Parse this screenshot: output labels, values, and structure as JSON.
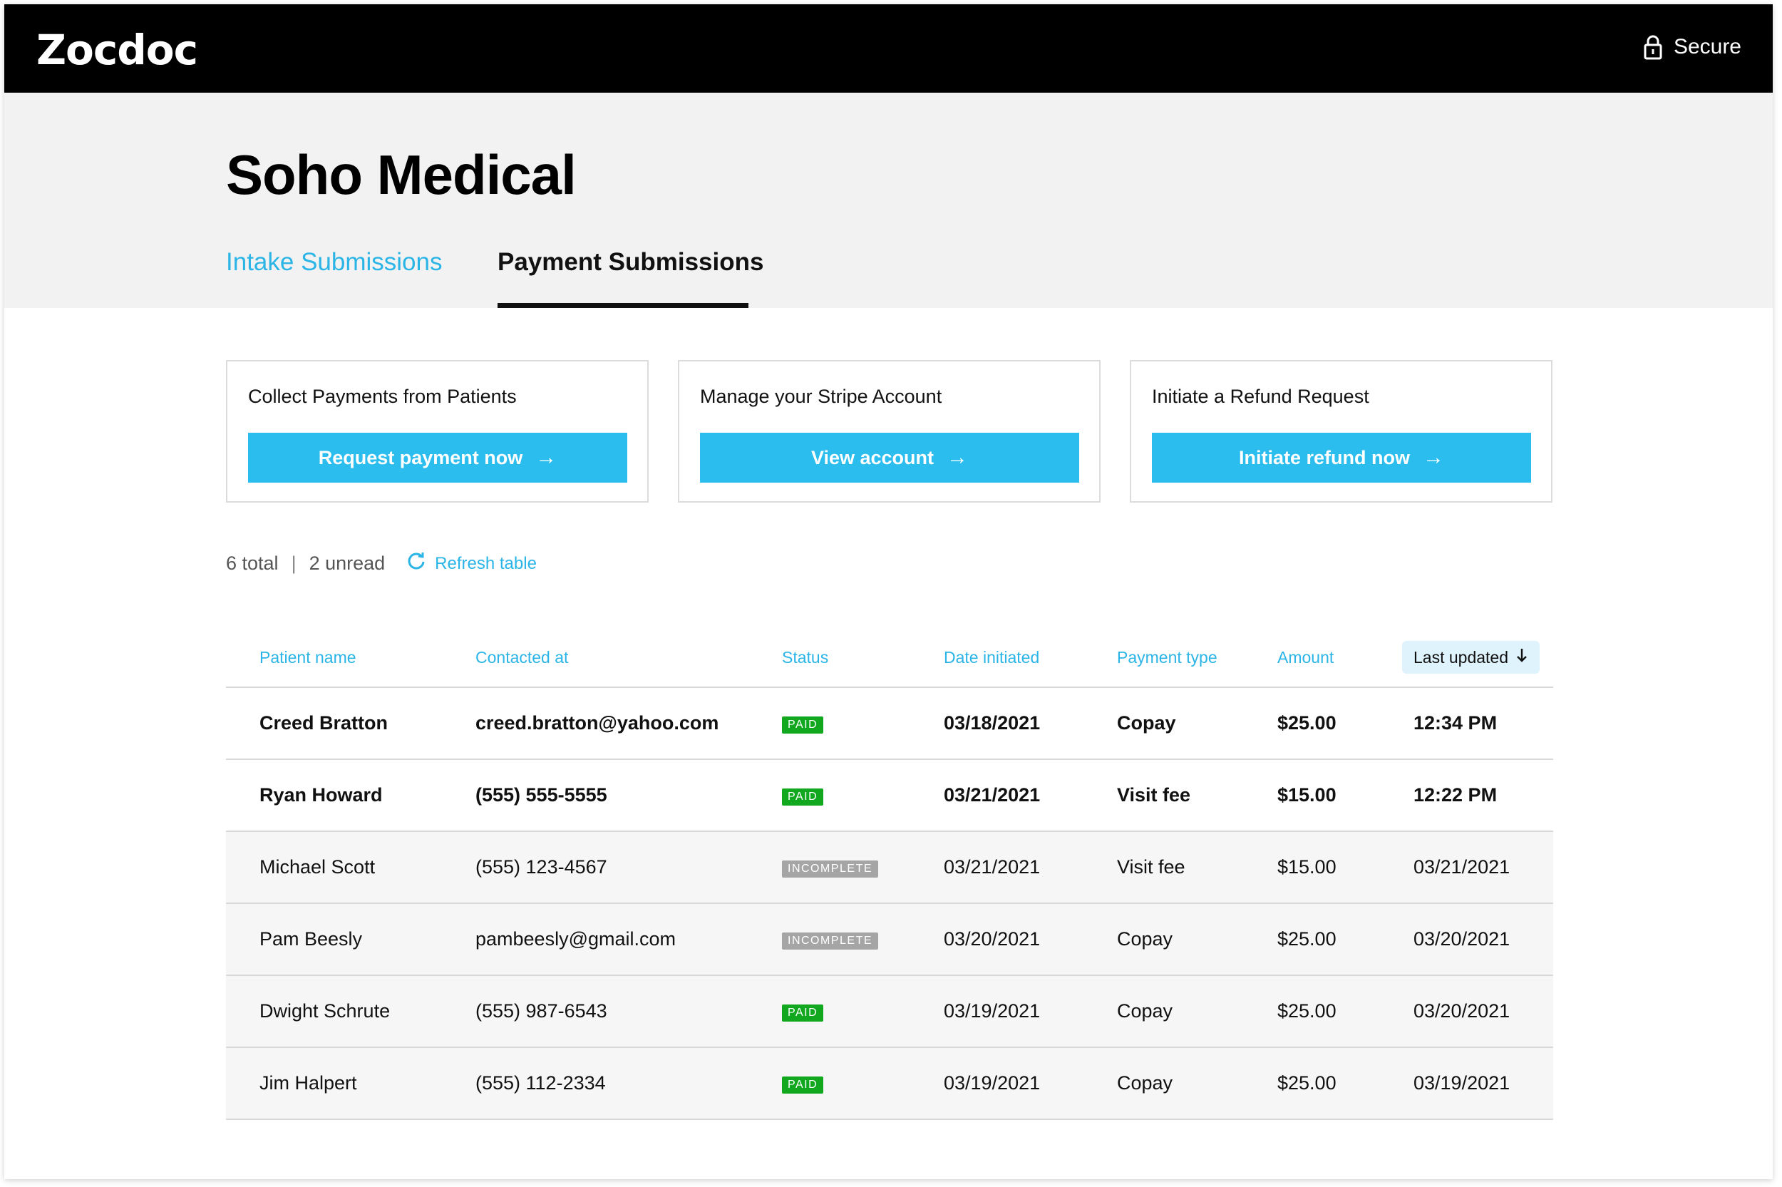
{
  "topbar": {
    "logo": "Zocdoc",
    "secure_label": "Secure",
    "secure_icon": "lock-icon"
  },
  "header": {
    "title": "Soho Medical",
    "tabs": [
      {
        "label": "Intake Submissions",
        "active": false
      },
      {
        "label": "Payment Submissions",
        "active": true
      }
    ]
  },
  "cards": [
    {
      "title": "Collect Payments from Patients",
      "button": "Request payment now"
    },
    {
      "title": "Manage your Stripe Account",
      "button": "View account"
    },
    {
      "title": "Initiate a Refund Request",
      "button": "Initiate refund now"
    }
  ],
  "summary": {
    "total": "6 total",
    "separator": "|",
    "unread": "2 unread",
    "refresh": "Refresh table"
  },
  "table": {
    "columns": [
      "Patient name",
      "Contacted at",
      "Status",
      "Date initiated",
      "Payment type",
      "Amount",
      "Last updated"
    ],
    "sorted_column": "Last updated",
    "rows": [
      {
        "name": "Creed Bratton",
        "contact": "creed.bratton@yahoo.com",
        "status": "PAID",
        "date": "03/18/2021",
        "type": "Copay",
        "amount": "$25.00",
        "updated": "12:34 PM",
        "unread": true
      },
      {
        "name": "Ryan Howard",
        "contact": "(555) 555-5555",
        "status": "PAID",
        "date": "03/21/2021",
        "type": "Visit fee",
        "amount": "$15.00",
        "updated": "12:22 PM",
        "unread": true
      },
      {
        "name": "Michael Scott",
        "contact": "(555) 123-4567",
        "status": "INCOMPLETE",
        "date": "03/21/2021",
        "type": "Visit fee",
        "amount": "$15.00",
        "updated": "03/21/2021",
        "unread": false
      },
      {
        "name": "Pam Beesly",
        "contact": "pambeesly@gmail.com",
        "status": "INCOMPLETE",
        "date": "03/20/2021",
        "type": "Copay",
        "amount": "$25.00",
        "updated": "03/20/2021",
        "unread": false
      },
      {
        "name": "Dwight Schrute",
        "contact": "(555) 987-6543",
        "status": "PAID",
        "date": "03/19/2021",
        "type": "Copay",
        "amount": "$25.00",
        "updated": "03/20/2021",
        "unread": false
      },
      {
        "name": "Jim Halpert",
        "contact": "(555) 112-2334",
        "status": "PAID",
        "date": "03/19/2021",
        "type": "Copay",
        "amount": "$25.00",
        "updated": "03/19/2021",
        "unread": false
      }
    ]
  },
  "colors": {
    "accent": "#2bbdee",
    "paid": "#11a81f",
    "incomplete": "#a5a5a5",
    "topbar": "#000000"
  }
}
